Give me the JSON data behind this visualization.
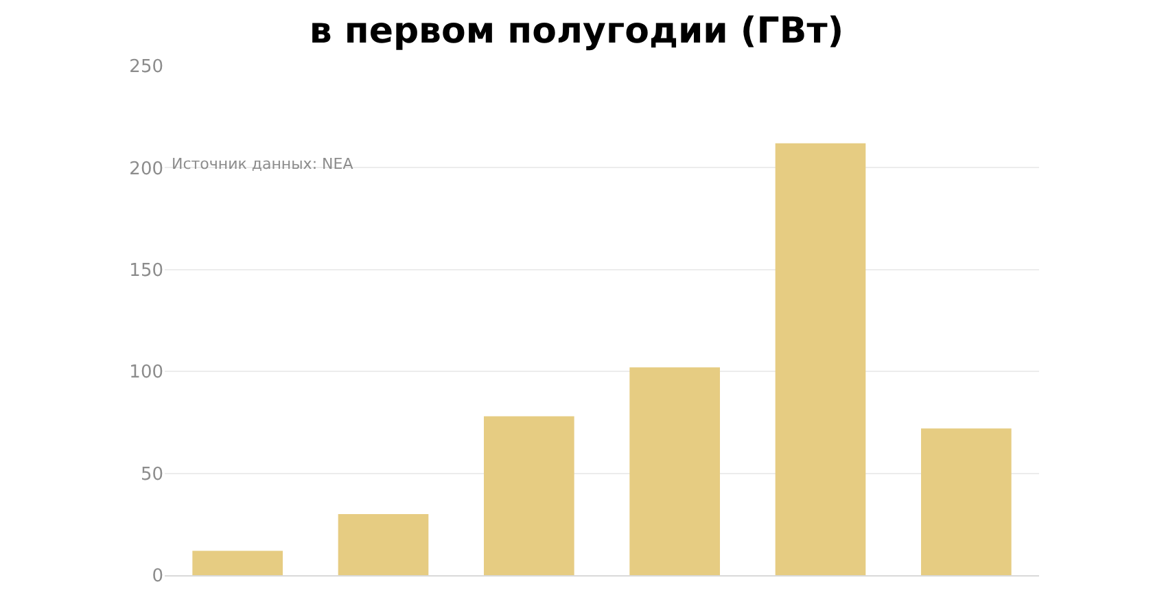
{
  "chart_data": {
    "type": "bar",
    "title": "в первом полугодии (ГВт)",
    "categories": [
      null,
      null,
      null,
      null,
      null,
      null
    ],
    "values": [
      12,
      30,
      78,
      102,
      212,
      72
    ],
    "color": "#e6cc82",
    "ylim": [
      0,
      250
    ],
    "yticks": [
      0,
      50,
      100,
      150,
      200,
      250
    ],
    "grid": "y",
    "tick_labels": "y",
    "annotations": [
      "Источник данных: NEA"
    ]
  }
}
